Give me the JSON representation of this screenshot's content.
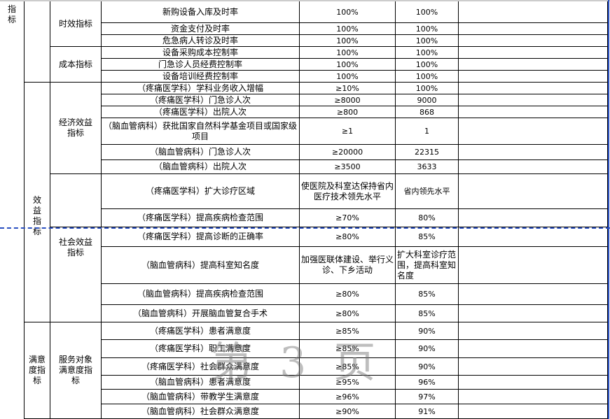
{
  "col1_label": "指标",
  "col2": [
    {
      "label": "效益指标"
    },
    {
      "label": "满意度指标"
    }
  ],
  "col3": [
    {
      "label": "时效指标"
    },
    {
      "label": "成本指标"
    },
    {
      "label": "经济效益指标"
    },
    {
      "label": ""
    },
    {
      "label": "社会效益指标"
    },
    {
      "label": "服务对象满意度指标"
    }
  ],
  "rows": [
    {
      "name": "新购设备入库及时率",
      "target": "100%",
      "actual": "100%"
    },
    {
      "name": "资金支付及时率",
      "target": "100%",
      "actual": "100%"
    },
    {
      "name": "危急病人转诊及时率",
      "target": "100%",
      "actual": "100%"
    },
    {
      "name": "设备采购成本控制率",
      "target": "100%",
      "actual": "100%"
    },
    {
      "name": "门急诊人员经费控制率",
      "target": "100%",
      "actual": "100%"
    },
    {
      "name": "设备培训经费控制率",
      "target": "100%",
      "actual": "100%"
    },
    {
      "name": "（疼痛医学科）学科业务收入增幅",
      "target": "≥10%",
      "actual": "100%"
    },
    {
      "name": "（疼痛医学科）门急诊人次",
      "target": "≥8000",
      "actual": "9000"
    },
    {
      "name": "（疼痛医学科）出院人次",
      "target": "≥800",
      "actual": "868"
    },
    {
      "name": "（脑血管病科）获批国家自然科学基金项目或国家级项目",
      "target": "≥1",
      "actual": "1"
    },
    {
      "name": "（脑血管病科）门急诊人次",
      "target": "≥20000",
      "actual": "22315"
    },
    {
      "name": "（脑血管病科）出院人次",
      "target": "≥3500",
      "actual": "3633"
    },
    {
      "name": "（疼痛医学科）扩大诊疗区域",
      "target": "使医院及科室达保持省内医疗技术领先水平",
      "actual": "省内领先水平"
    },
    {
      "name": "（疼痛医学科）提高疾病检查范围",
      "target": "≥70%",
      "actual": "80%"
    },
    {
      "name": "（疼痛医学科）提高诊断的正确率",
      "target": "≥80%",
      "actual": "85%"
    },
    {
      "name": "（脑血管病科）提高科室知名度",
      "target": "加强医联体建设、举行义诊、下乡活动",
      "actual": "扩大科室诊疗范围，提高科室知名度"
    },
    {
      "name": "（脑血管病科）提高疾病检查范围",
      "target": "≥80%",
      "actual": "85%"
    },
    {
      "name": "（脑血管病科）开展脑血管复合手术",
      "target": "≥80%",
      "actual": "85%"
    },
    {
      "name": "（疼痛医学科）患者满意度",
      "target": "≥85%",
      "actual": "90%"
    },
    {
      "name": "（疼痛医学科）职工满意度",
      "target": "≥85%",
      "actual": "90%"
    },
    {
      "name": "（疼痛医学科）社会群众满意度",
      "target": "≥85%",
      "actual": "90%"
    },
    {
      "name": "（脑血管病科）患者满意度",
      "target": "≥95%",
      "actual": "96%"
    },
    {
      "name": "（脑血管病科）带教学生满意度",
      "target": "≥96%",
      "actual": "97%"
    },
    {
      "name": "（脑血管病科）社会群众满意度",
      "target": "≥90%",
      "actual": "91%"
    }
  ],
  "watermark": "第 3 页",
  "colors": {
    "pagebreak": "#2a4fc0",
    "watermark": "#6e6e6e"
  }
}
